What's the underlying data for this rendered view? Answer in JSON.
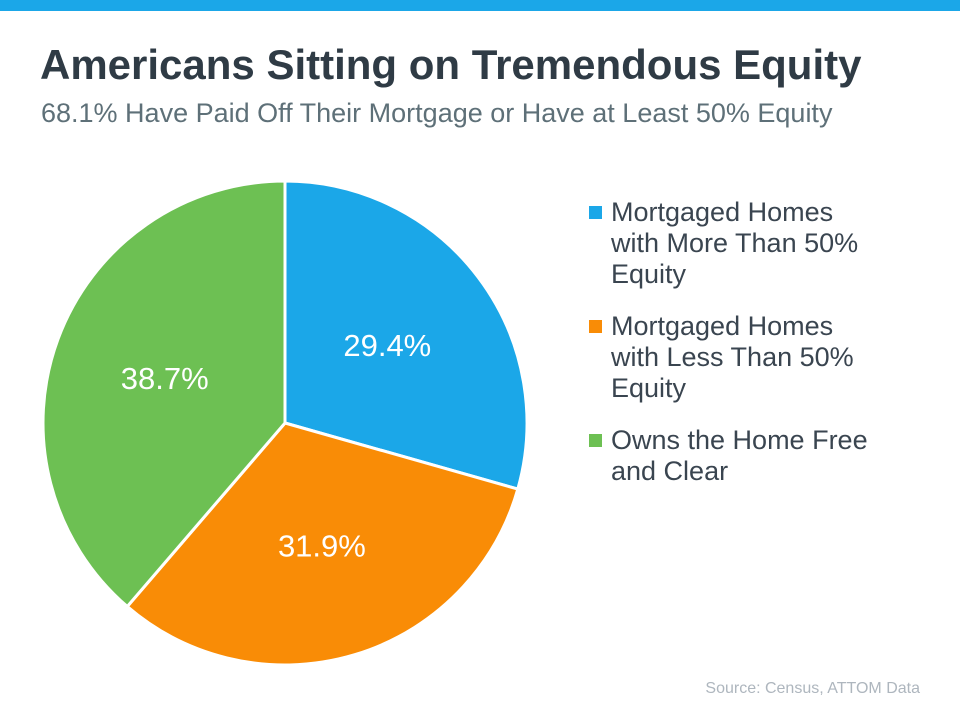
{
  "page": {
    "title": "Americans Sitting on Tremendous Equity",
    "subtitle": "68.1% Have Paid Off Their Mortgage or Have at Least 50% Equity",
    "source": "Source: Census, ATTOM Data"
  },
  "colors": {
    "top_bar": "#1BA7E8",
    "title_text": "#2F3B45",
    "subtitle_text": "#5E7078",
    "legend_text": "#3A4550",
    "source_text": "#AEB6BE",
    "slice_label_text": "#FFFFFF",
    "slice_border": "#FFFFFF"
  },
  "chart_data": {
    "type": "pie",
    "title": "Americans Sitting on Tremendous Equity",
    "subtitle": "68.1% Have Paid Off Their Mortgage or Have at Least 50% Equity",
    "source": "Source: Census, ATTOM Data",
    "start_angle_deg": 0,
    "direction": "clockwise",
    "legend_position": "right",
    "labels_inside": true,
    "slices": [
      {
        "label": "Mortgaged Homes with More Than 50% Equity",
        "value": 29.4,
        "display": "29.4%",
        "color": "#1BA7E8"
      },
      {
        "label": "Mortgaged Homes with Less Than 50% Equity",
        "value": 31.9,
        "display": "31.9%",
        "color": "#F98C06"
      },
      {
        "label": "Owns the Home Free and Clear",
        "value": 38.7,
        "display": "38.7%",
        "color": "#6DC053"
      }
    ]
  },
  "legend": {
    "items": [
      {
        "label": "Mortgaged Homes with More Than 50% Equity",
        "color": "#1BA7E8"
      },
      {
        "label": "Mortgaged Homes with Less Than 50% Equity",
        "color": "#F98C06"
      },
      {
        "label": "Owns the Home Free and Clear",
        "color": "#6DC053"
      }
    ]
  }
}
